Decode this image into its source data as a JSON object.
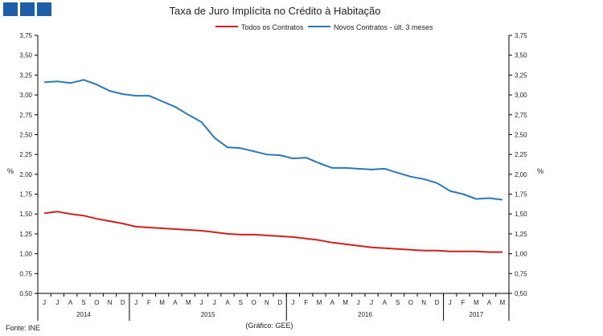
{
  "colors": {
    "logo": "#1f5fa8",
    "series_total": "#d21e1e",
    "series_new": "#2a78b8",
    "axis": "#000000"
  },
  "source": "Fonte: INE",
  "credit": "(Gráfico:  GEE)",
  "chart_data": {
    "type": "line",
    "title": "Taxa de Juro Implícita no Crédito à Habitação",
    "ylabel_left": "%",
    "ylabel_right": "%",
    "ylim": [
      0.5,
      3.75
    ],
    "yticks": [
      "0,50",
      "0,75",
      "1,00",
      "1,25",
      "1,50",
      "1,75",
      "2,00",
      "2,25",
      "2,50",
      "2,75",
      "3,00",
      "3,25",
      "3,50",
      "3,75"
    ],
    "legend_position": "top",
    "categories": [
      "J",
      "J",
      "A",
      "S",
      "O",
      "N",
      "D",
      "J",
      "F",
      "M",
      "A",
      "M",
      "J",
      "J",
      "A",
      "S",
      "O",
      "N",
      "D",
      "J",
      "F",
      "M",
      "A",
      "M",
      "J",
      "J",
      "A",
      "S",
      "O",
      "N",
      "D",
      "J",
      "F",
      "M",
      "A",
      "M"
    ],
    "years": [
      {
        "label": "2014",
        "start": 0,
        "end": 7
      },
      {
        "label": "2015",
        "start": 7,
        "end": 19
      },
      {
        "label": "2016",
        "start": 19,
        "end": 31
      },
      {
        "label": "2017",
        "start": 31,
        "end": 36
      }
    ],
    "series": [
      {
        "name": "Todos os Contratos",
        "color": "#d21e1e",
        "values": [
          1.51,
          1.53,
          1.5,
          1.48,
          1.44,
          1.41,
          1.38,
          1.34,
          1.33,
          1.32,
          1.31,
          1.3,
          1.29,
          1.27,
          1.25,
          1.24,
          1.24,
          1.23,
          1.22,
          1.21,
          1.19,
          1.17,
          1.14,
          1.12,
          1.1,
          1.08,
          1.07,
          1.06,
          1.05,
          1.04,
          1.04,
          1.03,
          1.03,
          1.03,
          1.02,
          1.02
        ]
      },
      {
        "name": "Novos Contratos - últ. 3 meses",
        "color": "#2a78b8",
        "values": [
          3.16,
          3.17,
          3.15,
          3.19,
          3.13,
          3.05,
          3.01,
          2.99,
          2.99,
          2.92,
          2.85,
          2.75,
          2.66,
          2.46,
          2.34,
          2.33,
          2.29,
          2.25,
          2.24,
          2.2,
          2.21,
          2.14,
          2.08,
          2.08,
          2.07,
          2.06,
          2.07,
          2.02,
          1.97,
          1.94,
          1.89,
          1.79,
          1.75,
          1.69,
          1.7,
          1.68
        ]
      }
    ]
  }
}
